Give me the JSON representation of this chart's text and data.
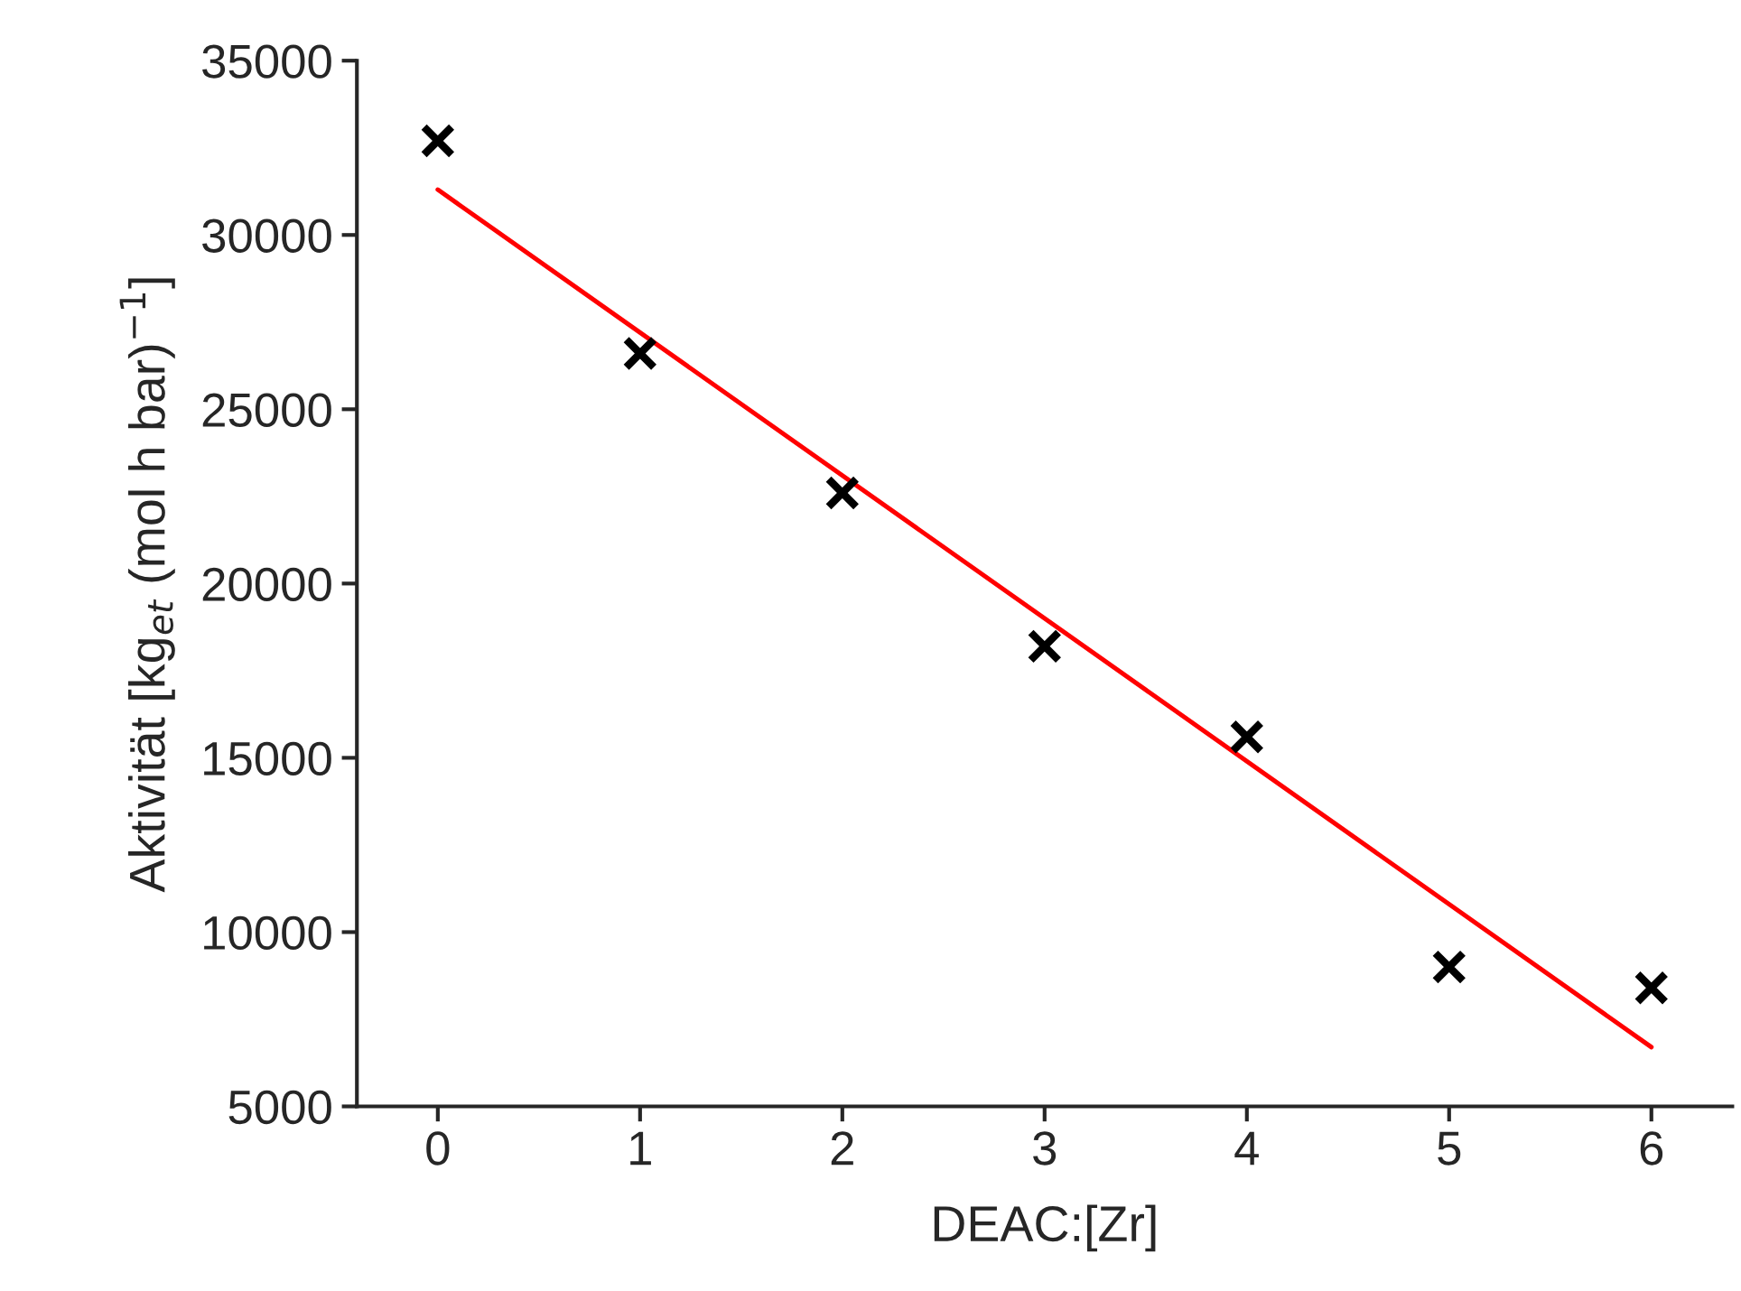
{
  "chart_data": {
    "type": "scatter",
    "xlabel": "DEAC:[Zr]",
    "ylabel": "Aktivität [kg$_{et}$ (mol h bar)$^{−1}$]",
    "xlim": [
      -0.4,
      6.4
    ],
    "xticks": [
      0,
      1,
      2,
      3,
      4,
      5,
      6
    ],
    "ylim": [
      5000,
      35000
    ],
    "yticks": [
      5000,
      10000,
      15000,
      20000,
      25000,
      30000,
      35000
    ],
    "grid": false,
    "legend": false,
    "series": [
      {
        "color": "#000000",
        "marker": "cross",
        "x": [
          0,
          1,
          2,
          3,
          4,
          5,
          6
        ],
        "values": [
          32700,
          26600,
          22600,
          18200,
          15600,
          9000,
          8400
        ]
      },
      {
        "type": "line",
        "color": "#ff0000",
        "marker": "none",
        "line_style": "solid",
        "x": [
          0,
          6
        ],
        "values": [
          31300,
          6700
        ]
      }
    ]
  }
}
